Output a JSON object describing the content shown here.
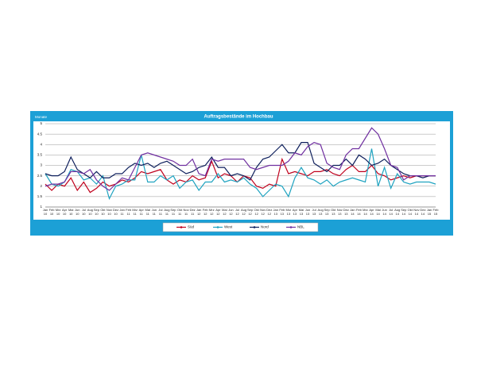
{
  "chart_data": {
    "type": "line",
    "title": "Auftragsbestände im Hochbau",
    "y_label": "Monate",
    "categories": [
      "Jan 10",
      "Feb 10",
      "Mrz 10",
      "Apr 10",
      "Mai 10",
      "Jun 10",
      "Jul 10",
      "Aug 10",
      "Sep 10",
      "Okt 10",
      "Nov 10",
      "Dez 10",
      "Jan 11",
      "Feb 11",
      "Mrz 11",
      "Apr 11",
      "Mai 11",
      "Jun 11",
      "Jul 11",
      "Aug 11",
      "Sep 11",
      "Okt 11",
      "Nov 11",
      "Dez 11",
      "Jan 12",
      "Feb 12",
      "Mrz 12",
      "Apr 12",
      "Mai 12",
      "Jun 12",
      "Jul 12",
      "Aug 12",
      "Sep 12",
      "Okt 12",
      "Nov 12",
      "Dez 12",
      "Jan 13",
      "Feb 13",
      "Mrz 13",
      "Apr 13",
      "Mai 13",
      "Jun 13",
      "Jul 13",
      "Aug 13",
      "Sep 13",
      "Okt 13",
      "Nov 13",
      "Dez 13",
      "Jan 14",
      "Feb 14",
      "Mrz 14",
      "Apr 14",
      "Mai 14",
      "Jun 14",
      "Jul 14",
      "Aug 14",
      "Sep 14",
      "Okt 14",
      "Nov 14",
      "Dez 14",
      "Jan 15",
      "Feb 15"
    ],
    "series": [
      {
        "name": "Süd",
        "color": "#c0001c",
        "values": [
          2.1,
          1.8,
          2.1,
          2.0,
          2.4,
          1.8,
          2.2,
          1.7,
          1.9,
          2.2,
          2.0,
          2.1,
          2.3,
          2.2,
          2.4,
          2.7,
          2.6,
          2.7,
          2.8,
          2.3,
          2.1,
          2.3,
          2.2,
          2.5,
          2.3,
          2.4,
          3.2,
          2.4,
          2.6,
          2.5,
          2.2,
          2.5,
          2.4,
          2.0,
          1.9,
          2.1,
          2.0,
          3.3,
          2.6,
          2.7,
          2.6,
          2.5,
          2.7,
          2.7,
          2.8,
          2.6,
          2.5,
          2.8,
          3.0,
          2.7,
          2.7,
          3.0,
          2.6,
          2.5,
          2.3,
          2.4,
          2.5,
          2.4,
          2.5,
          2.5,
          2.5,
          2.5
        ]
      },
      {
        "name": "West",
        "color": "#1fa3c0",
        "values": [
          2.6,
          2.1,
          2.0,
          2.2,
          2.8,
          2.7,
          2.3,
          2.4,
          2.1,
          2.5,
          1.4,
          2.0,
          2.1,
          2.3,
          2.3,
          3.5,
          2.2,
          2.2,
          2.5,
          2.3,
          2.5,
          1.9,
          2.2,
          2.3,
          1.8,
          2.2,
          2.2,
          2.6,
          2.2,
          2.3,
          2.2,
          2.4,
          2.1,
          1.9,
          1.5,
          1.8,
          2.1,
          2.0,
          1.5,
          2.4,
          2.9,
          2.4,
          2.3,
          2.1,
          2.3,
          2.0,
          2.2,
          2.3,
          2.4,
          2.3,
          2.2,
          3.8,
          2.0,
          2.9,
          1.9,
          2.6,
          2.2,
          2.1,
          2.2,
          2.2,
          2.2,
          2.1
        ]
      },
      {
        "name": "Nord",
        "color": "#0e1f5c",
        "values": [
          2.6,
          2.5,
          2.5,
          2.7,
          3.4,
          2.8,
          2.6,
          2.4,
          2.7,
          2.4,
          2.4,
          2.6,
          2.6,
          2.9,
          3.1,
          3.0,
          3.1,
          2.9,
          3.1,
          3.2,
          3.0,
          2.8,
          2.6,
          2.7,
          2.9,
          3.0,
          3.4,
          2.9,
          2.9,
          2.5,
          2.6,
          2.5,
          2.3,
          2.9,
          3.3,
          3.4,
          3.7,
          4.0,
          3.6,
          3.6,
          4.1,
          4.1,
          3.1,
          2.9,
          2.7,
          3.0,
          3.0,
          3.3,
          3.0,
          3.5,
          3.3,
          3.0,
          3.1,
          3.3,
          3.0,
          2.8,
          2.6,
          2.5,
          2.5,
          2.4,
          2.5,
          2.5
        ]
      },
      {
        "name": "NBL",
        "color": "#7030a0",
        "values": [
          2.0,
          2.1,
          2.1,
          2.2,
          2.7,
          2.7,
          2.6,
          2.8,
          2.3,
          2.0,
          1.8,
          2.1,
          2.4,
          2.3,
          2.9,
          3.5,
          3.6,
          3.5,
          3.4,
          3.3,
          3.2,
          3.0,
          3.0,
          3.3,
          2.6,
          2.5,
          3.3,
          3.2,
          3.3,
          3.3,
          3.3,
          3.3,
          2.9,
          2.8,
          2.9,
          3.0,
          3.0,
          3.0,
          3.2,
          3.6,
          3.5,
          3.9,
          4.1,
          4.0,
          3.1,
          2.9,
          2.8,
          3.5,
          3.8,
          3.8,
          4.3,
          4.8,
          4.5,
          3.8,
          3.0,
          2.9,
          2.3,
          2.5,
          2.5,
          2.5,
          2.5,
          2.5
        ]
      }
    ],
    "ylim": [
      1,
      5
    ],
    "yticks": [
      1,
      1.5,
      2,
      2.5,
      3,
      3.5,
      4,
      4.5,
      5
    ],
    "grid": true
  }
}
